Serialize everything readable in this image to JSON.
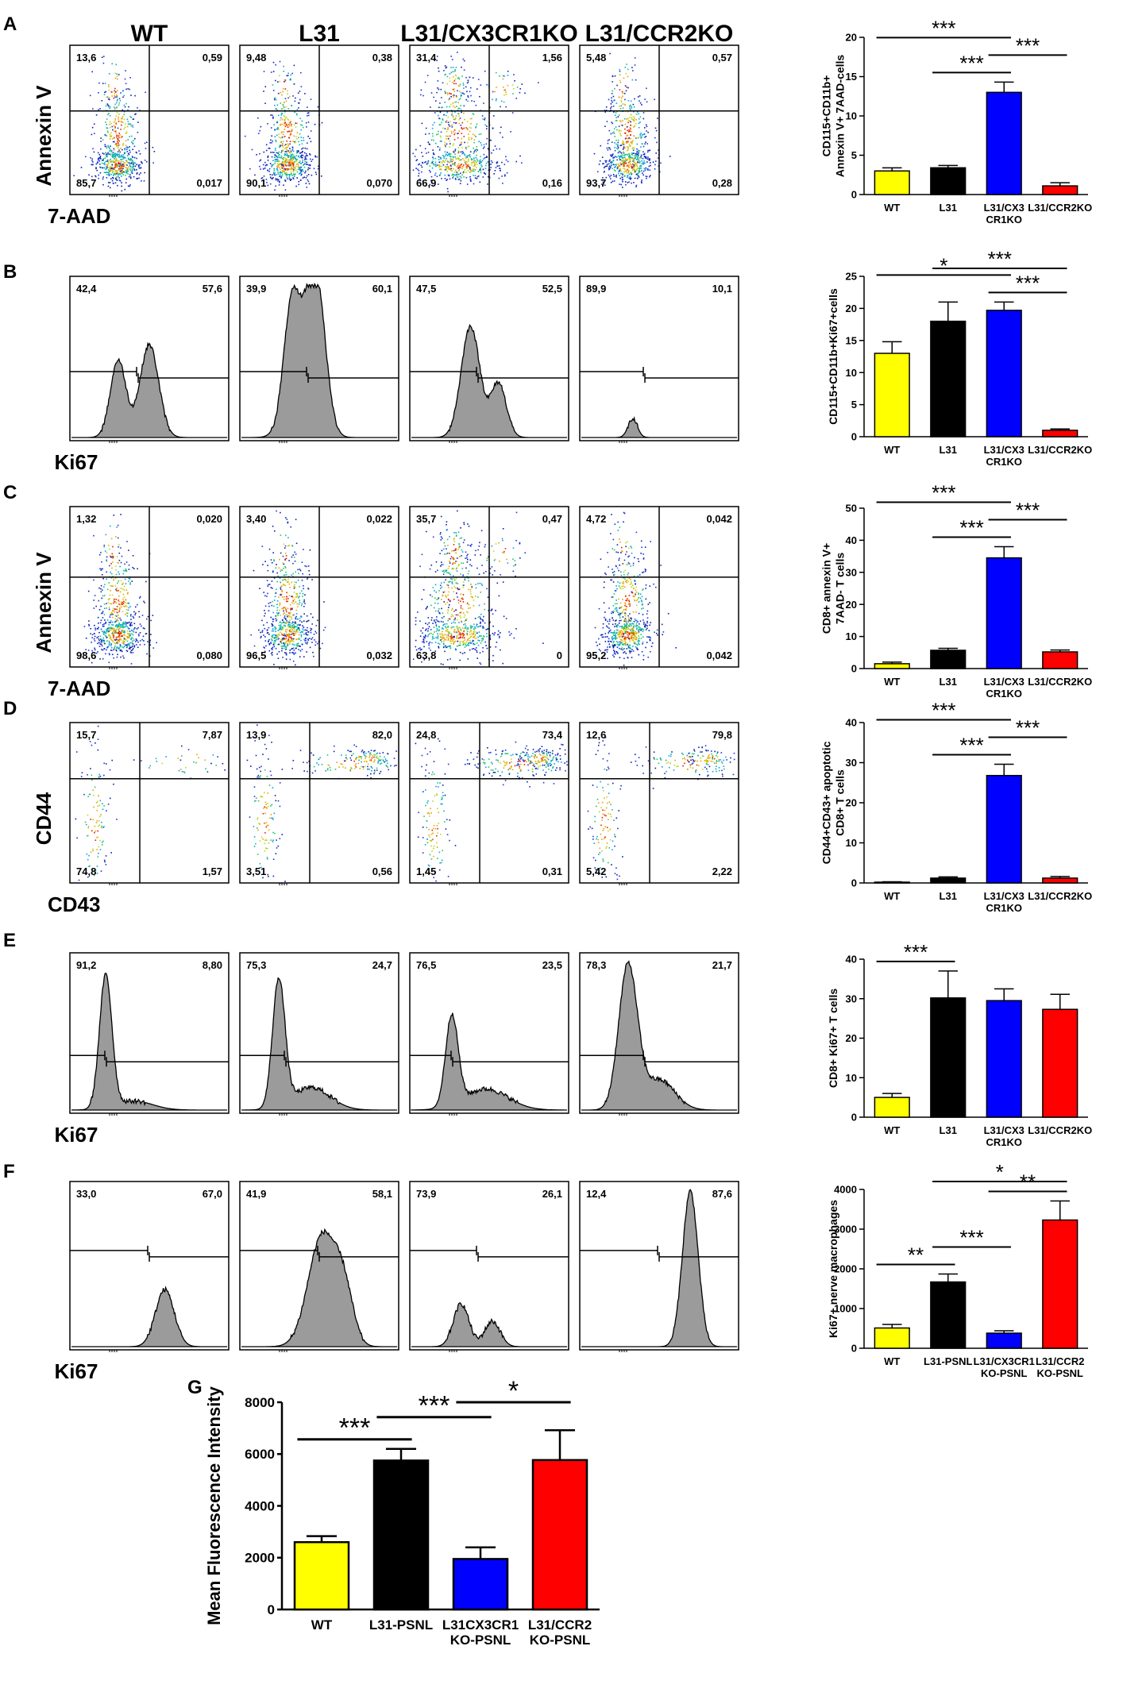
{
  "colors": {
    "yellow": "#ffff00",
    "black": "#000000",
    "blue": "#0000ff",
    "red": "#ff0000",
    "histFill": "#9b9b9b"
  },
  "headers": [
    "WT",
    "L31",
    "L31/CX3CR1KO",
    "L31/CCR2KO"
  ],
  "panels": [
    {
      "letter": "A",
      "flow": {
        "kind": "dot",
        "ylabel": "Annexin V",
        "xlabel": "7-AAD",
        "quadrants": [
          [
            "13,6",
            "0,59",
            "85,7",
            "0,017"
          ],
          [
            "9,48",
            "0,38",
            "90,1",
            "0,070"
          ],
          [
            "31,4",
            "1,56",
            "66,9",
            "0,16"
          ],
          [
            "5,48",
            "0,57",
            "93,7",
            "0,28"
          ]
        ]
      },
      "chart": {
        "type": "bar",
        "ylabel": [
          "CD115+CD11b+",
          "Annexin V+ 7AAD-cells"
        ],
        "ylim": [
          0,
          20
        ],
        "ticks": [
          0,
          5,
          10,
          15,
          20
        ],
        "categories": [
          [
            "WT"
          ],
          [
            "L31"
          ],
          [
            "L31/CX3",
            "CR1KO"
          ],
          [
            "L31/CCR2KO"
          ]
        ],
        "values": [
          3.0,
          3.4,
          13.0,
          1.1
        ],
        "errors": [
          0.4,
          0.3,
          1.3,
          0.4
        ],
        "sig": [
          {
            "from": 0,
            "to": 2,
            "label": "***"
          },
          {
            "from": 1,
            "to": 2,
            "label": "***"
          },
          {
            "from": 2,
            "to": 3,
            "label": "***"
          }
        ]
      }
    },
    {
      "letter": "B",
      "flow": {
        "kind": "hist",
        "xlabel": "Ki67",
        "gates": [
          [
            "42,4",
            "57,6"
          ],
          [
            "39,9",
            "60,1"
          ],
          [
            "47,5",
            "52,5"
          ],
          [
            "89,9",
            "10,1"
          ]
        ]
      },
      "chart": {
        "type": "bar",
        "ylabel": [
          "CD115+CD11b+Ki67+cells"
        ],
        "ylim": [
          0,
          25
        ],
        "ticks": [
          0,
          5,
          10,
          15,
          20,
          25
        ],
        "categories": [
          [
            "WT"
          ],
          [
            "L31"
          ],
          [
            "L31/CX3",
            "CR1KO"
          ],
          [
            "L31/CCR2KO"
          ]
        ],
        "values": [
          13.0,
          18.0,
          19.7,
          1.0
        ],
        "errors": [
          1.8,
          3.0,
          1.3,
          0.2
        ],
        "sig": [
          {
            "from": 0,
            "to": 2,
            "label": "*"
          },
          {
            "from": 1,
            "to": 3,
            "label": "***"
          },
          {
            "from": 2,
            "to": 3,
            "label": "***"
          }
        ]
      }
    },
    {
      "letter": "C",
      "flow": {
        "kind": "dot",
        "ylabel": "Annexin V",
        "xlabel": "7-AAD",
        "quadrants": [
          [
            "1,32",
            "0,020",
            "98,6",
            "0,080"
          ],
          [
            "3,40",
            "0,022",
            "96,5",
            "0,032"
          ],
          [
            "35,7",
            "0,47",
            "63,8",
            "0"
          ],
          [
            "4,72",
            "0,042",
            "95,2",
            "0,042"
          ]
        ]
      },
      "chart": {
        "type": "bar",
        "ylabel": [
          "CD8+ annexin V+",
          "7AAD- T cells"
        ],
        "ylim": [
          0,
          50
        ],
        "ticks": [
          0,
          10,
          20,
          30,
          40,
          50
        ],
        "categories": [
          [
            "WT"
          ],
          [
            "L31"
          ],
          [
            "L31/CX3",
            "CR1KO"
          ],
          [
            "L31/CCR2KO"
          ]
        ],
        "values": [
          1.5,
          5.7,
          34.5,
          5.2
        ],
        "errors": [
          0.5,
          0.6,
          3.5,
          0.6
        ],
        "sig": [
          {
            "from": 0,
            "to": 2,
            "label": "***"
          },
          {
            "from": 1,
            "to": 2,
            "label": "***"
          },
          {
            "from": 2,
            "to": 3,
            "label": "***"
          }
        ]
      }
    },
    {
      "letter": "D",
      "flow": {
        "kind": "dot",
        "ylabel": "CD44",
        "xlabel": "CD43",
        "quadrants": [
          [
            "15,7",
            "7,87",
            "74,8",
            "1,57"
          ],
          [
            "13,9",
            "82,0",
            "3,51",
            "0,56"
          ],
          [
            "24,8",
            "73,4",
            "1,45",
            "0,31"
          ],
          [
            "12,6",
            "79,8",
            "5,42",
            "2,22"
          ]
        ]
      },
      "chart": {
        "type": "bar",
        "ylabel": [
          "CD44+CD43+ apoptotic",
          "CD8+ T cells"
        ],
        "ylim": [
          0,
          40
        ],
        "ticks": [
          0,
          10,
          20,
          30,
          40
        ],
        "categories": [
          [
            "WT"
          ],
          [
            "L31"
          ],
          [
            "L31/CX3",
            "CR1KO"
          ],
          [
            "L31/CCR2KO"
          ]
        ],
        "values": [
          0.2,
          1.2,
          26.8,
          1.2
        ],
        "errors": [
          0.1,
          0.3,
          2.8,
          0.4
        ],
        "sig": [
          {
            "from": 0,
            "to": 2,
            "label": "***"
          },
          {
            "from": 1,
            "to": 2,
            "label": "***"
          },
          {
            "from": 2,
            "to": 3,
            "label": "***"
          }
        ]
      }
    },
    {
      "letter": "E",
      "flow": {
        "kind": "hist",
        "xlabel": "Ki67",
        "gates": [
          [
            "91,2",
            "8,80"
          ],
          [
            "75,3",
            "24,7"
          ],
          [
            "76,5",
            "23,5"
          ],
          [
            "78,3",
            "21,7"
          ]
        ]
      },
      "chart": {
        "type": "bar",
        "ylabel": [
          "CD8+ Ki67+ T cells"
        ],
        "ylim": [
          0,
          40
        ],
        "ticks": [
          0,
          10,
          20,
          30,
          40
        ],
        "categories": [
          [
            "WT"
          ],
          [
            "L31"
          ],
          [
            "L31/CX3",
            "CR1KO"
          ],
          [
            "L31/CCR2KO"
          ]
        ],
        "values": [
          5.0,
          30.2,
          29.5,
          27.3
        ],
        "errors": [
          1.0,
          6.8,
          3.0,
          3.8
        ],
        "sig": [
          {
            "from": 0,
            "to": 1,
            "label": "***"
          }
        ]
      }
    },
    {
      "letter": "F",
      "flow": {
        "kind": "hist",
        "xlabel": "Ki67",
        "gates": [
          [
            "33,0",
            "67,0"
          ],
          [
            "41,9",
            "58,1"
          ],
          [
            "73,9",
            "26,1"
          ],
          [
            "12,4",
            "87,6"
          ]
        ]
      },
      "chart": {
        "type": "bar",
        "ylabel": [
          "Ki67+ nerve macrophages"
        ],
        "ylim": [
          0,
          4000
        ],
        "ticks": [
          0,
          1000,
          2000,
          3000,
          4000
        ],
        "categories": [
          [
            "WT"
          ],
          [
            "L31-PSNL"
          ],
          [
            "L31/CX3CR1",
            "KO-PSNL"
          ],
          [
            "L31/CCR2",
            "KO-PSNL"
          ]
        ],
        "values": [
          510,
          1670,
          380,
          3230
        ],
        "errors": [
          90,
          200,
          60,
          480
        ],
        "sig": [
          {
            "from": 0,
            "to": 1,
            "label": "**"
          },
          {
            "from": 1,
            "to": 2,
            "label": "***"
          },
          {
            "from": 1,
            "to": 3,
            "label": "*"
          },
          {
            "from": 2,
            "to": 3,
            "label": "**"
          }
        ]
      }
    }
  ],
  "panelG": {
    "letter": "G",
    "chart": {
      "type": "bar",
      "ylabel": [
        "Mean Fluorescence Intensity"
      ],
      "ylim": [
        0,
        8000
      ],
      "ticks": [
        0,
        2000,
        4000,
        6000,
        8000
      ],
      "categories": [
        [
          "WT"
        ],
        [
          "L31-PSNL"
        ],
        [
          "L31CX3CR1",
          "KO-PSNL"
        ],
        [
          "L31/CCR2",
          "KO-PSNL"
        ]
      ],
      "values": [
        2600,
        5750,
        1950,
        5770
      ],
      "errors": [
        230,
        450,
        450,
        1150
      ],
      "sig": [
        {
          "from": 0,
          "to": 1,
          "label": "***"
        },
        {
          "from": 1,
          "to": 2,
          "label": "***"
        },
        {
          "from": 2,
          "to": 3,
          "label": "*"
        }
      ]
    }
  }
}
